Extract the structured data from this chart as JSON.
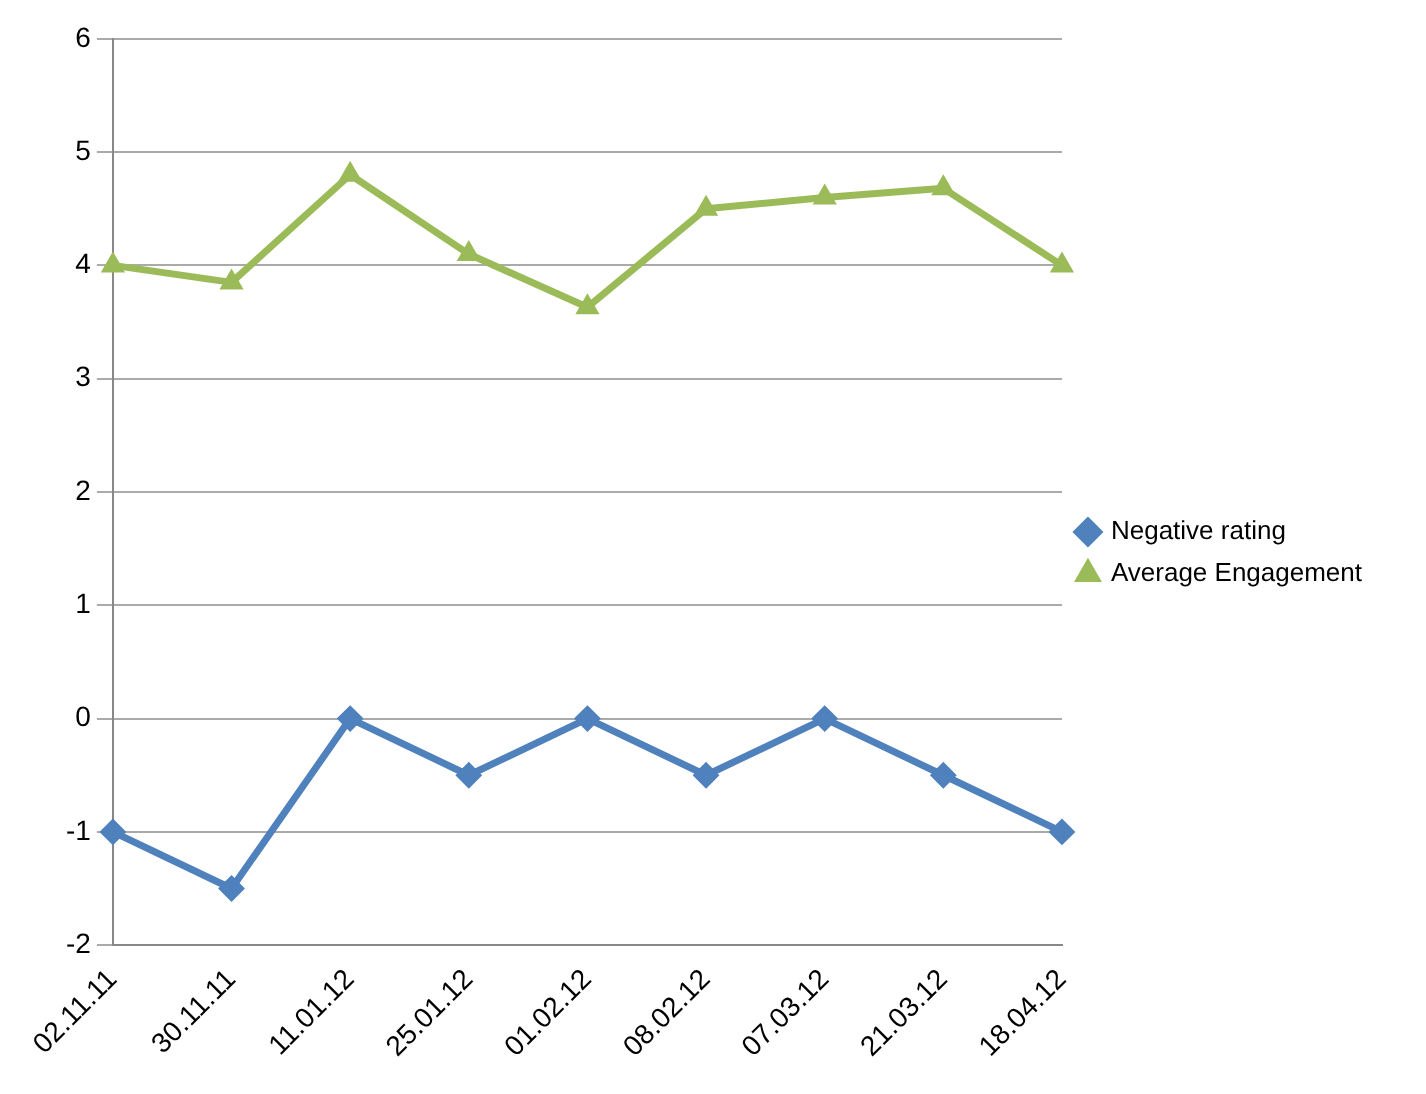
{
  "chart_data": {
    "type": "line",
    "categories": [
      "02.11.11",
      "30.11.11",
      "11.01.12",
      "25.01.12",
      "01.02.12",
      "08.02.12",
      "07.03.12",
      "21.03.12",
      "18.04.12"
    ],
    "series": [
      {
        "name": "Negative rating",
        "color": "#4f81bd",
        "marker": "diamond",
        "values": [
          -1,
          -1.5,
          0,
          -0.5,
          0,
          -0.5,
          0,
          -0.5,
          -1
        ]
      },
      {
        "name": "Average Engagement",
        "color": "#9bbb59",
        "marker": "triangle",
        "values": [
          4,
          3.85,
          4.8,
          4.1,
          3.63,
          4.5,
          4.6,
          4.68,
          4
        ]
      }
    ],
    "ylim": [
      -2,
      6
    ],
    "yticks": [
      -2,
      -1,
      0,
      1,
      2,
      3,
      4,
      5,
      6
    ],
    "grid": "y",
    "legend": "right",
    "line_style": "solid"
  }
}
